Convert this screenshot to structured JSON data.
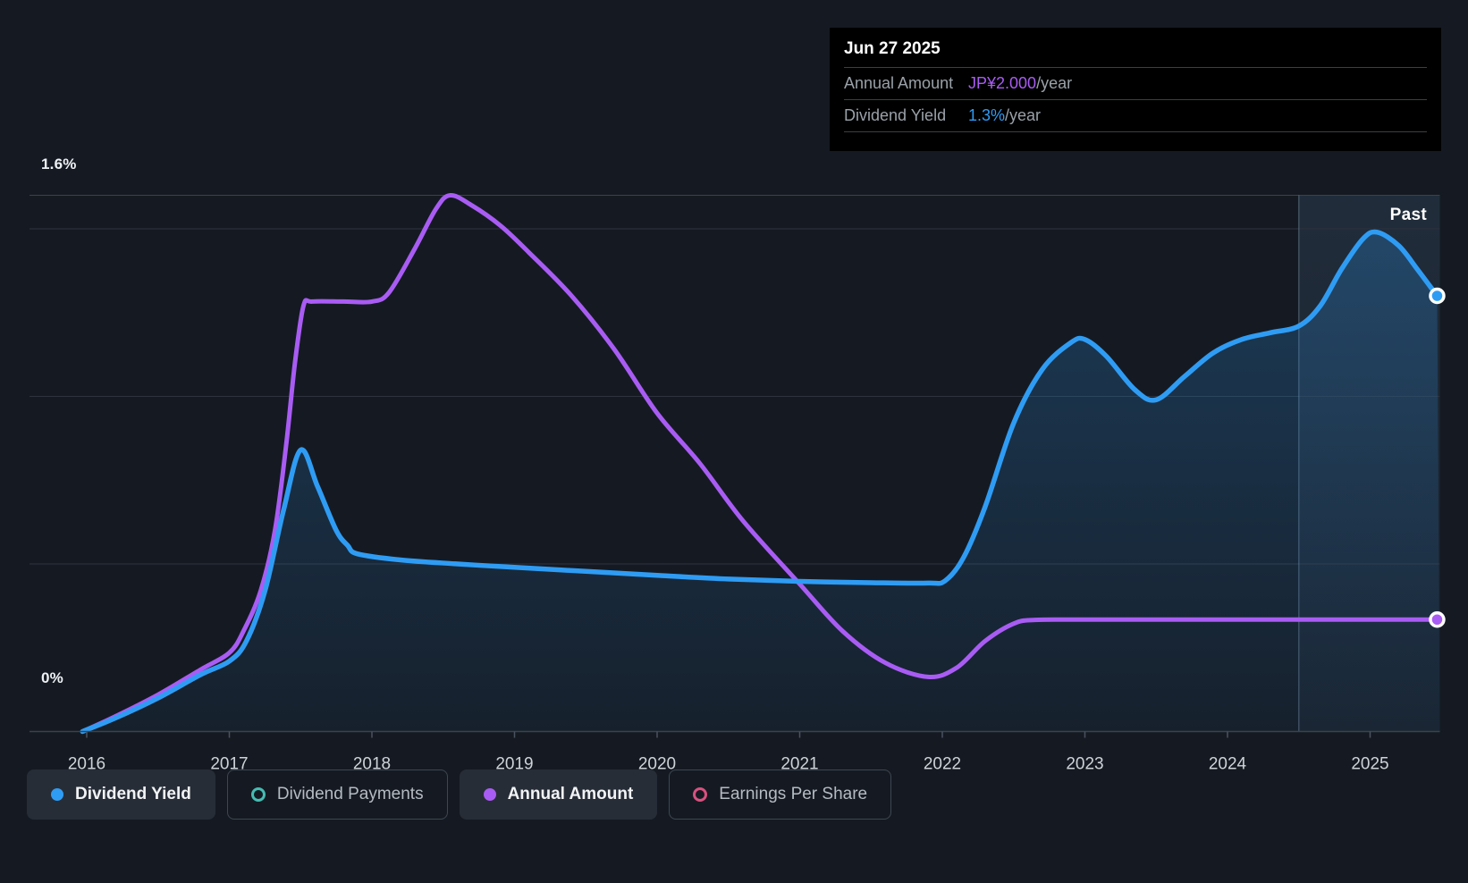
{
  "tooltip": {
    "date": "Jun 27 2025",
    "rows": [
      {
        "label": "Annual Amount",
        "value": "JP¥2.000",
        "suffix": "/year",
        "color": "#a95cf3"
      },
      {
        "label": "Dividend Yield",
        "value": "1.3%",
        "suffix": "/year",
        "color": "#2f9cf4"
      }
    ]
  },
  "chart_data": {
    "type": "area",
    "y_axis": {
      "top_label": "1.6%",
      "bottom_label": "0%",
      "unit": "%",
      "ylim": [
        0,
        1.6
      ],
      "gridlines_pct": [
        1.6,
        1.5,
        1.0,
        0.5,
        0
      ]
    },
    "x_axis": {
      "ticks": [
        "2016",
        "2017",
        "2018",
        "2019",
        "2020",
        "2021",
        "2022",
        "2023",
        "2024",
        "2025"
      ],
      "tick_years": [
        2016,
        2017,
        2018,
        2019,
        2020,
        2021,
        2022,
        2023,
        2024,
        2025
      ],
      "range": [
        2015.97,
        2025.47
      ]
    },
    "annotations": {
      "past_label": "Past",
      "divider_year": 2024.5,
      "highlight_range": [
        2024.5,
        2025.47
      ]
    },
    "legend_position": "bottom",
    "grid": true,
    "series": [
      {
        "name": "Dividend Yield",
        "color": "#2f9cf4",
        "fill": true,
        "end_marker": true,
        "unit": "%",
        "current_value": "1.3%/year",
        "points": [
          [
            2015.97,
            0.0
          ],
          [
            2016.2,
            0.04
          ],
          [
            2016.5,
            0.1
          ],
          [
            2016.8,
            0.17
          ],
          [
            2017.0,
            0.21
          ],
          [
            2017.12,
            0.27
          ],
          [
            2017.25,
            0.42
          ],
          [
            2017.38,
            0.66
          ],
          [
            2017.5,
            0.84
          ],
          [
            2017.62,
            0.73
          ],
          [
            2017.75,
            0.6
          ],
          [
            2017.83,
            0.555
          ],
          [
            2017.9,
            0.53
          ],
          [
            2018.2,
            0.512
          ],
          [
            2018.6,
            0.5
          ],
          [
            2019.0,
            0.49
          ],
          [
            2019.5,
            0.478
          ],
          [
            2020.0,
            0.466
          ],
          [
            2020.5,
            0.455
          ],
          [
            2021.0,
            0.448
          ],
          [
            2021.5,
            0.444
          ],
          [
            2021.9,
            0.443
          ],
          [
            2022.02,
            0.45
          ],
          [
            2022.15,
            0.52
          ],
          [
            2022.3,
            0.67
          ],
          [
            2022.5,
            0.92
          ],
          [
            2022.7,
            1.08
          ],
          [
            2022.9,
            1.16
          ],
          [
            2023.0,
            1.17
          ],
          [
            2023.15,
            1.12
          ],
          [
            2023.35,
            1.02
          ],
          [
            2023.5,
            0.99
          ],
          [
            2023.7,
            1.06
          ],
          [
            2023.9,
            1.13
          ],
          [
            2024.1,
            1.17
          ],
          [
            2024.3,
            1.19
          ],
          [
            2024.5,
            1.21
          ],
          [
            2024.65,
            1.27
          ],
          [
            2024.8,
            1.38
          ],
          [
            2024.95,
            1.47
          ],
          [
            2025.05,
            1.49
          ],
          [
            2025.2,
            1.45
          ],
          [
            2025.33,
            1.38
          ],
          [
            2025.47,
            1.3
          ]
        ]
      },
      {
        "name": "Annual Amount",
        "color": "#a95cf3",
        "fill": false,
        "end_marker": true,
        "unit": "plotted on unlabeled JP¥ scale; latest value JP¥2.000/year",
        "current_value": "JP¥2.000/year",
        "points": [
          [
            2015.97,
            0.0
          ],
          [
            2016.2,
            0.045
          ],
          [
            2016.5,
            0.11
          ],
          [
            2016.8,
            0.185
          ],
          [
            2017.0,
            0.235
          ],
          [
            2017.1,
            0.3
          ],
          [
            2017.22,
            0.42
          ],
          [
            2017.32,
            0.6
          ],
          [
            2017.4,
            0.86
          ],
          [
            2017.46,
            1.1
          ],
          [
            2017.52,
            1.27
          ],
          [
            2017.58,
            1.283
          ],
          [
            2017.8,
            1.283
          ],
          [
            2018.0,
            1.283
          ],
          [
            2018.12,
            1.31
          ],
          [
            2018.3,
            1.44
          ],
          [
            2018.45,
            1.56
          ],
          [
            2018.55,
            1.6
          ],
          [
            2018.7,
            1.57
          ],
          [
            2018.9,
            1.51
          ],
          [
            2019.1,
            1.43
          ],
          [
            2019.4,
            1.3
          ],
          [
            2019.7,
            1.14
          ],
          [
            2020.0,
            0.95
          ],
          [
            2020.3,
            0.8
          ],
          [
            2020.6,
            0.63
          ],
          [
            2021.0,
            0.44
          ],
          [
            2021.3,
            0.3
          ],
          [
            2021.6,
            0.205
          ],
          [
            2021.9,
            0.163
          ],
          [
            2022.1,
            0.19
          ],
          [
            2022.3,
            0.27
          ],
          [
            2022.5,
            0.322
          ],
          [
            2022.65,
            0.333
          ],
          [
            2023.0,
            0.334
          ],
          [
            2024.0,
            0.334
          ],
          [
            2025.0,
            0.334
          ],
          [
            2025.47,
            0.334
          ]
        ]
      }
    ]
  },
  "legend": {
    "items": [
      {
        "label": "Dividend Yield",
        "color": "#2f9cf4",
        "active": true,
        "marker": "filled"
      },
      {
        "label": "Dividend Payments",
        "color": "#45bdb3",
        "active": false,
        "marker": "hollow"
      },
      {
        "label": "Annual Amount",
        "color": "#a95cf3",
        "active": true,
        "marker": "filled"
      },
      {
        "label": "Earnings Per Share",
        "color": "#d8517f",
        "active": false,
        "marker": "hollow"
      }
    ]
  },
  "colors": {
    "background": "#151a22",
    "gridline": "#2d333d",
    "chart_border": "#3b424c",
    "axis_text": "#ced3d9",
    "tooltip_background": "#000000",
    "tooltip_label": "#9aa1a9",
    "past_divider": "#a3c2de",
    "dividend_yield": "#2f9cf4",
    "annual_amount": "#a95cf3",
    "dividend_payments": "#45bdb3",
    "earnings_per_share": "#d8517f"
  }
}
